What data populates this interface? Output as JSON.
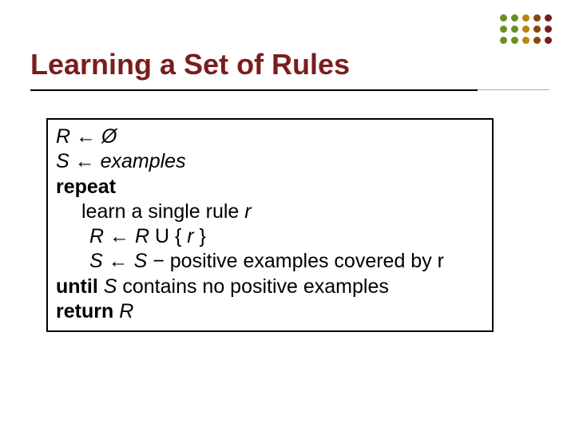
{
  "title": {
    "text": "Learning a Set of Rules",
    "color": "#7a1d1d",
    "fontsize": 36
  },
  "decoration": {
    "dot_colors": [
      "#6b8e23",
      "#6b8e23",
      "#b8860b",
      "#8b4513",
      "#7a1d1d",
      "#6b8e23",
      "#6b8e23",
      "#b8860b",
      "#8b4513",
      "#7a1d1d",
      "#6b8e23",
      "#6b8e23",
      "#b8860b",
      "#8b4513",
      "#7a1d1d"
    ]
  },
  "algorithm": {
    "border_color": "#000000",
    "text_color": "#000000",
    "fontsize": 25,
    "lines": {
      "l1_R": "R",
      "l1_arrow": " ← ",
      "l1_empty": "Ø",
      "l2_S": "S",
      "l2_arrow": " ← ",
      "l2_examples": "examples",
      "l3_repeat": "repeat",
      "l4_text_a": "learn a single rule ",
      "l4_r": "r",
      "l5_R1": "R",
      "l5_arrow": " ← ",
      "l5_R2": "R",
      "l5_union": " U { ",
      "l5_r": "r",
      "l5_close": " }",
      "l6_S1": "S",
      "l6_arrow": " ← ",
      "l6_S2": "S",
      "l6_rest": " − positive examples covered by r",
      "l7_until": "until",
      "l7_rest_a": " ",
      "l7_S": "S",
      "l7_rest_b": " contains no positive examples",
      "l8_return": "return",
      "l8_sp": " ",
      "l8_R": "R"
    }
  }
}
